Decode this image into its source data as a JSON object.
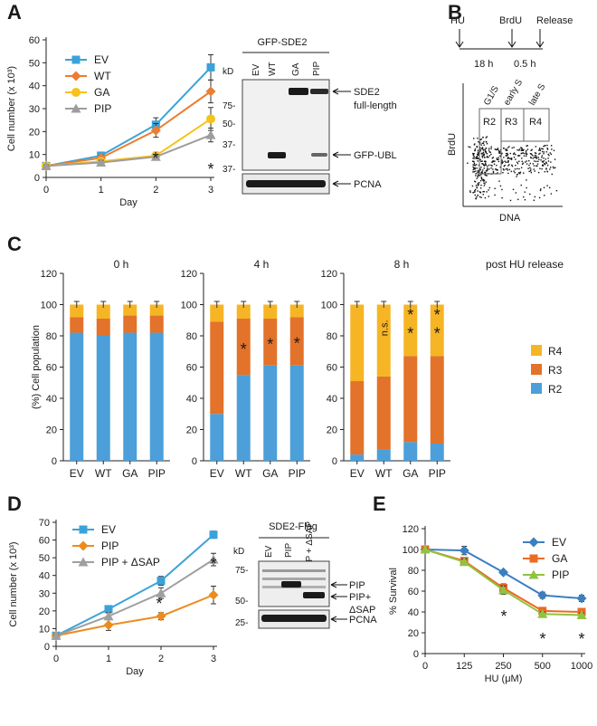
{
  "panels": {
    "A": {
      "letter": "A"
    },
    "B": {
      "letter": "B"
    },
    "C": {
      "letter": "C"
    },
    "D": {
      "letter": "D"
    },
    "E": {
      "letter": "E"
    }
  },
  "colors": {
    "EV": "#3ba2d9",
    "WT": "#ec7d31",
    "GA": "#f7c21a",
    "PIP": "#9d9d9d",
    "PIPd": "#ec8c1e",
    "PIPdSAP": "#9f9f9f",
    "E_EV": "#3b7fbf",
    "E_GA": "#ec6a22",
    "E_PIP": "#8fc341",
    "R2": "#4c9fd9",
    "R3": "#e3722a",
    "R4": "#f6b524"
  },
  "blotA": {
    "title": "GFP-SDE2",
    "kd": "kD",
    "lanes": [
      "EV",
      "WT",
      "GA",
      "PIP"
    ],
    "markers": [
      "75-",
      "50-",
      "37-",
      "37-"
    ],
    "bands": [
      "SDE2",
      "full-length",
      "GFP-UBL",
      "PCNA"
    ]
  },
  "blotD": {
    "title": "SDE2-Flag",
    "kd": "kD",
    "lanes": [
      "EV",
      "PIP",
      "PIP + ΔSAP"
    ],
    "markers": [
      "75-",
      "50-",
      "25-"
    ],
    "bands": [
      "PIP",
      "PIP+",
      "ΔSAP",
      "PCNA"
    ]
  },
  "schemeB": {
    "hu": "HU",
    "brdu": "BrdU",
    "release": "Release",
    "t1": "18 h",
    "t2": "0.5 h",
    "g1s": "G1/S",
    "earlyS": "early S",
    "lateS": "late S",
    "r2": "R2",
    "r3": "R3",
    "r4": "R4",
    "ylabel": "BrdU",
    "xlabel": "DNA"
  },
  "chart_data": [
    {
      "panel": "A",
      "type": "line",
      "ylabel": "Cell number (x 10³)",
      "xlabel": "Day",
      "x": [
        0,
        1,
        2,
        3
      ],
      "xlim": [
        0,
        3
      ],
      "ylim": [
        0,
        60
      ],
      "yticks": [
        0,
        10,
        20,
        30,
        40,
        50,
        60
      ],
      "series": [
        {
          "name": "EV",
          "values": [
            5,
            9.5,
            23,
            48
          ],
          "err": [
            0.5,
            1,
            3,
            5.5
          ]
        },
        {
          "name": "WT",
          "values": [
            5,
            8.5,
            20.5,
            37.5
          ],
          "err": [
            0.5,
            1,
            3,
            5
          ]
        },
        {
          "name": "GA",
          "values": [
            5,
            7,
            9.5,
            25.5
          ],
          "err": [
            0.5,
            1,
            1.5,
            5
          ]
        },
        {
          "name": "PIP",
          "values": [
            5,
            6.5,
            9,
            18.5
          ],
          "err": [
            0.5,
            1,
            1,
            3
          ]
        }
      ],
      "annotations": [
        "*",
        "*"
      ]
    },
    {
      "panel": "C",
      "type": "bar",
      "stacked": true,
      "ylabel": "(%) Cell population",
      "ylim": [
        0,
        120
      ],
      "yticks": [
        0,
        20,
        40,
        60,
        80,
        100,
        120
      ],
      "categories": [
        "EV",
        "WT",
        "GA",
        "PIP"
      ],
      "legend": [
        "R4",
        "R3",
        "R2"
      ],
      "note": "post HU release",
      "groups": [
        {
          "title": "0 h",
          "R2": [
            82,
            80,
            82,
            82
          ],
          "R3": [
            10,
            11,
            11,
            11
          ],
          "R4": [
            8,
            9,
            7,
            7
          ],
          "stars": [
            "",
            "",
            "",
            ""
          ]
        },
        {
          "title": "4 h",
          "R2": [
            30,
            55,
            61,
            61
          ],
          "R3": [
            59,
            36,
            30,
            31
          ],
          "R4": [
            11,
            9,
            9,
            8
          ],
          "stars": [
            "",
            "*",
            "*",
            "*"
          ]
        },
        {
          "title": "8 h",
          "R2": [
            4,
            7,
            12,
            11
          ],
          "R3": [
            47,
            47,
            55,
            56
          ],
          "R4": [
            49,
            46,
            33,
            33
          ],
          "stars": [
            "",
            "n.s.",
            "* *",
            "* *"
          ]
        }
      ]
    },
    {
      "panel": "D",
      "type": "line",
      "ylabel": "Cell number (x 10³)",
      "xlabel": "Day",
      "x": [
        0,
        1,
        2,
        3
      ],
      "xlim": [
        0,
        3
      ],
      "ylim": [
        0,
        70
      ],
      "yticks": [
        0,
        10,
        20,
        30,
        40,
        50,
        60,
        70
      ],
      "series": [
        {
          "name": "EV",
          "values": [
            6,
            21,
            37,
            63
          ],
          "err": [
            0.5,
            1,
            2.5,
            2
          ]
        },
        {
          "name": "PIP",
          "values": [
            6,
            12,
            17,
            29
          ],
          "err": [
            0.5,
            3,
            2,
            5
          ]
        },
        {
          "name": "PIP + ΔSAP",
          "values": [
            6,
            17,
            30,
            49
          ],
          "err": [
            0.5,
            2,
            3,
            3.5
          ]
        }
      ],
      "annotations": [
        "*",
        "*"
      ]
    },
    {
      "panel": "E",
      "type": "line",
      "ylabel": "% Survival",
      "xlabel": "HU (μM)",
      "categories": [
        "0",
        "125",
        "250",
        "500",
        "1000"
      ],
      "ylim": [
        0,
        120
      ],
      "yticks": [
        0,
        20,
        40,
        60,
        80,
        100,
        120
      ],
      "series": [
        {
          "name": "EV",
          "values": [
            100,
            99,
            78,
            56,
            53
          ],
          "err": [
            1,
            4,
            2,
            3,
            3
          ]
        },
        {
          "name": "GA",
          "values": [
            100,
            89,
            63,
            41,
            40
          ],
          "err": [
            1,
            3,
            4,
            2,
            2
          ]
        },
        {
          "name": "PIP",
          "values": [
            100,
            88,
            61,
            38,
            37
          ],
          "err": [
            1,
            3,
            4,
            2,
            2
          ]
        }
      ],
      "annotations": [
        "*",
        "*",
        "*"
      ]
    }
  ]
}
